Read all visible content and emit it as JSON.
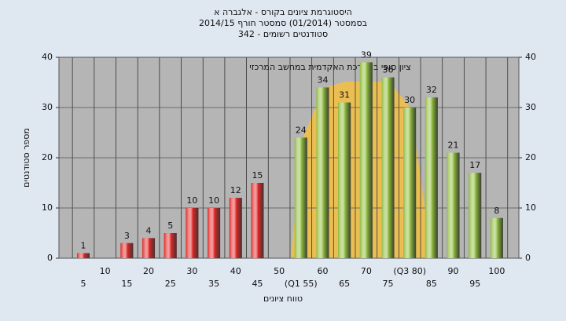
{
  "chart_data": {
    "type": "bar",
    "title": [
      "היסטוגרמת ציונים בקורס - אלגברה א",
      "בסמסטר  (01/2014)  סמסטר חורף 2014/15",
      "342 - סטודנטים רשומים"
    ],
    "annotation": "ציון סופי במערכת האקדמית במחשב המרכזי",
    "x_label": "טווח ציונים",
    "y_label": "מספר סטודנטים",
    "categories": [
      "5",
      "10",
      "15",
      "20",
      "25",
      "30",
      "35",
      "40",
      "45",
      "50",
      "(Q1 55)",
      "60",
      "65",
      "70",
      "75",
      "(Q3 80)",
      "85",
      "90",
      "95",
      "100"
    ],
    "values": [
      1,
      0,
      3,
      4,
      5,
      10,
      10,
      12,
      15,
      0,
      24,
      34,
      31,
      39,
      36,
      30,
      32,
      21,
      17,
      8
    ],
    "colors": [
      "#e02626",
      "#e02626",
      "#e02626",
      "#e02626",
      "#e02626",
      "#e02626",
      "#e02626",
      "#e02626",
      "#e02626",
      "#e02626",
      "#8dbb3a",
      "#8dbb3a",
      "#8dbb3a",
      "#8dbb3a",
      "#8dbb3a",
      "#8dbb3a",
      "#8dbb3a",
      "#8dbb3a",
      "#8dbb3a",
      "#8dbb3a"
    ],
    "ylim": [
      0,
      40
    ],
    "yticks": [
      0,
      10,
      20,
      30,
      40
    ],
    "y2lim": [
      0,
      40
    ],
    "y2ticks": [
      0,
      10,
      20,
      30,
      40
    ],
    "grid": true
  }
}
